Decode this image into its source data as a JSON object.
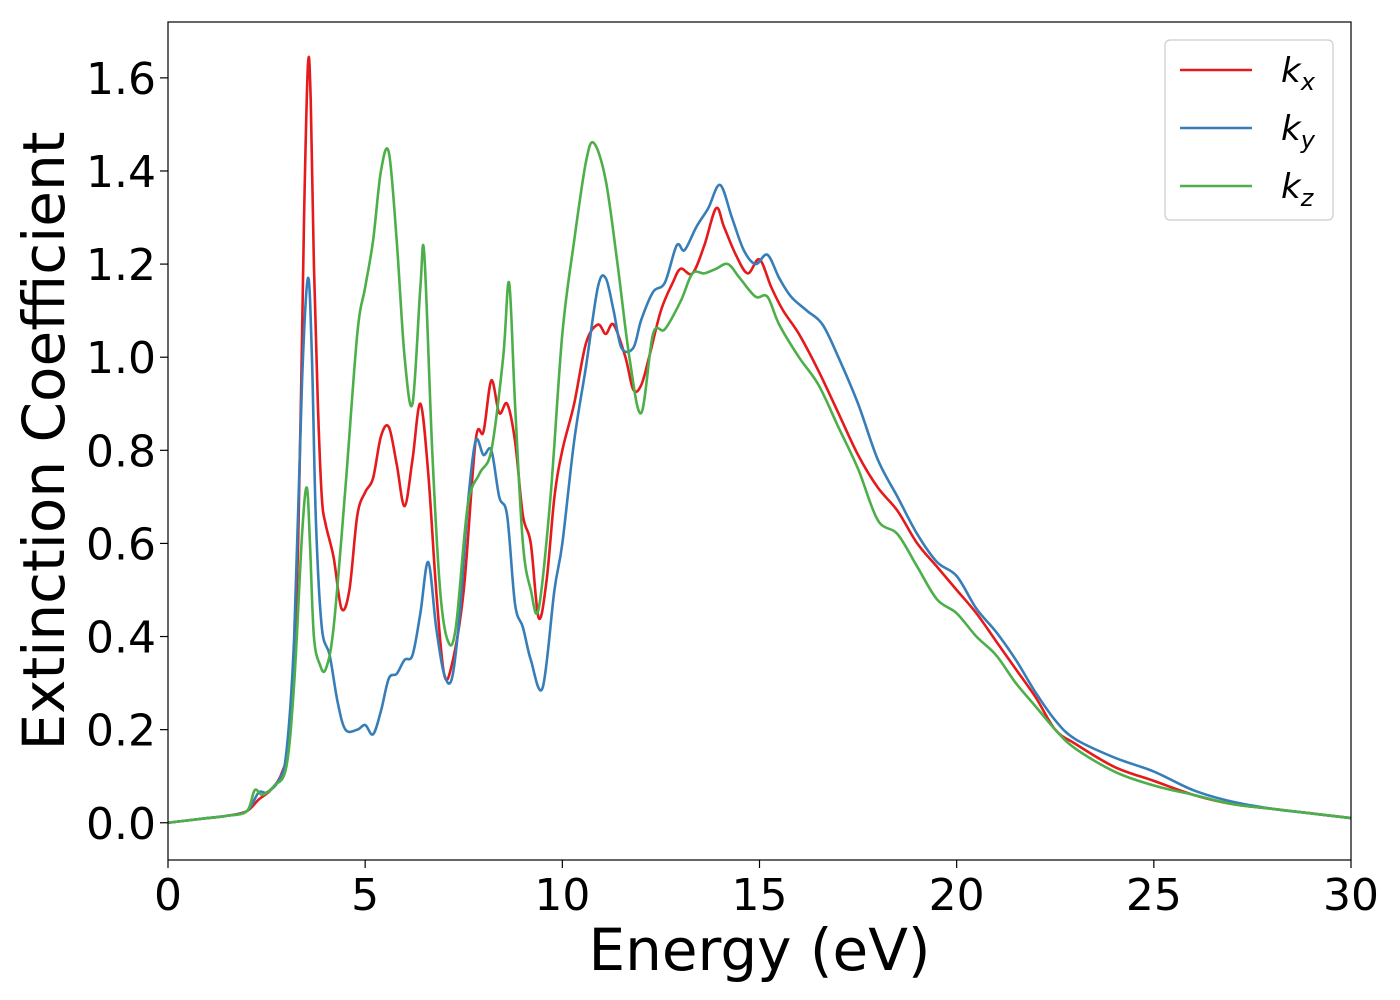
{
  "chart_data": {
    "type": "line",
    "title": "",
    "xlabel": "Energy (eV)",
    "ylabel": "Extinction Coefficient",
    "xlim": [
      0,
      30
    ],
    "ylim": [
      -0.08,
      1.72
    ],
    "xticks": [
      0,
      5,
      10,
      15,
      20,
      25,
      30
    ],
    "yticks": [
      0.0,
      0.2,
      0.4,
      0.6,
      0.8,
      1.0,
      1.2,
      1.4,
      1.6
    ],
    "grid": false,
    "legend_position": "top-right",
    "series": [
      {
        "name": "kx",
        "name_main": "k",
        "name_sub": "x",
        "color": "#e41a1c",
        "x": [
          0,
          1.0,
          1.5,
          2.0,
          2.3,
          2.6,
          2.9,
          3.1,
          3.3,
          3.45,
          3.55,
          3.62,
          3.7,
          3.8,
          3.9,
          4.0,
          4.2,
          4.4,
          4.6,
          4.8,
          5.0,
          5.2,
          5.4,
          5.6,
          5.8,
          6.0,
          6.2,
          6.4,
          6.6,
          6.8,
          7.0,
          7.2,
          7.5,
          7.8,
          8.0,
          8.2,
          8.4,
          8.6,
          8.8,
          9.0,
          9.2,
          9.4,
          9.6,
          9.8,
          10.0,
          10.3,
          10.6,
          10.9,
          11.1,
          11.3,
          11.6,
          11.8,
          12.0,
          12.2,
          12.5,
          12.8,
          13.0,
          13.3,
          13.6,
          13.9,
          14.1,
          14.4,
          14.7,
          15.0,
          15.3,
          15.6,
          16.0,
          16.5,
          17.0,
          17.5,
          18.0,
          18.5,
          19.0,
          19.5,
          20.0,
          20.5,
          21.0,
          21.5,
          22.0,
          22.5,
          23.0,
          24.0,
          25.0,
          26.0,
          27.0,
          28.0,
          29.0,
          30.0
        ],
        "y": [
          0.0,
          0.01,
          0.015,
          0.025,
          0.05,
          0.07,
          0.11,
          0.2,
          0.6,
          1.3,
          1.63,
          1.55,
          1.2,
          0.9,
          0.7,
          0.64,
          0.57,
          0.46,
          0.5,
          0.66,
          0.71,
          0.74,
          0.83,
          0.85,
          0.77,
          0.68,
          0.78,
          0.9,
          0.75,
          0.5,
          0.32,
          0.34,
          0.5,
          0.82,
          0.84,
          0.95,
          0.88,
          0.9,
          0.82,
          0.66,
          0.6,
          0.44,
          0.52,
          0.7,
          0.8,
          0.9,
          1.03,
          1.07,
          1.05,
          1.07,
          1.0,
          0.93,
          0.94,
          1.0,
          1.1,
          1.16,
          1.19,
          1.18,
          1.24,
          1.32,
          1.28,
          1.22,
          1.18,
          1.21,
          1.15,
          1.1,
          1.05,
          0.97,
          0.88,
          0.79,
          0.72,
          0.67,
          0.6,
          0.55,
          0.5,
          0.45,
          0.39,
          0.33,
          0.27,
          0.2,
          0.17,
          0.12,
          0.09,
          0.06,
          0.04,
          0.03,
          0.02,
          0.01
        ]
      },
      {
        "name": "ky",
        "name_main": "k",
        "name_sub": "y",
        "color": "#377eb8",
        "x": [
          0,
          1.0,
          1.5,
          2.0,
          2.3,
          2.5,
          2.8,
          3.0,
          3.2,
          3.4,
          3.55,
          3.65,
          3.75,
          3.9,
          4.1,
          4.3,
          4.5,
          4.8,
          5.0,
          5.2,
          5.4,
          5.6,
          5.8,
          6.0,
          6.2,
          6.4,
          6.6,
          6.8,
          7.0,
          7.2,
          7.4,
          7.6,
          7.8,
          8.0,
          8.2,
          8.4,
          8.6,
          8.8,
          9.0,
          9.2,
          9.5,
          9.8,
          10.0,
          10.3,
          10.6,
          10.9,
          11.1,
          11.3,
          11.5,
          11.8,
          12.0,
          12.3,
          12.6,
          12.9,
          13.1,
          13.4,
          13.7,
          14.0,
          14.3,
          14.6,
          14.9,
          15.2,
          15.5,
          15.8,
          16.2,
          16.6,
          17.0,
          17.5,
          18.0,
          18.5,
          19.0,
          19.5,
          20.0,
          20.5,
          21.0,
          21.5,
          22.0,
          22.5,
          23.0,
          24.0,
          25.0,
          26.0,
          27.0,
          28.0,
          29.0,
          30.0
        ],
        "y": [
          0.0,
          0.01,
          0.015,
          0.025,
          0.065,
          0.065,
          0.09,
          0.15,
          0.4,
          0.95,
          1.17,
          1.0,
          0.65,
          0.42,
          0.36,
          0.26,
          0.2,
          0.2,
          0.21,
          0.19,
          0.24,
          0.31,
          0.32,
          0.35,
          0.36,
          0.45,
          0.56,
          0.42,
          0.32,
          0.31,
          0.45,
          0.68,
          0.82,
          0.79,
          0.8,
          0.7,
          0.66,
          0.47,
          0.42,
          0.35,
          0.29,
          0.5,
          0.6,
          0.82,
          0.98,
          1.15,
          1.17,
          1.1,
          1.02,
          1.02,
          1.08,
          1.14,
          1.16,
          1.24,
          1.23,
          1.28,
          1.32,
          1.37,
          1.3,
          1.23,
          1.2,
          1.22,
          1.17,
          1.13,
          1.1,
          1.07,
          1.0,
          0.9,
          0.78,
          0.7,
          0.62,
          0.56,
          0.53,
          0.46,
          0.41,
          0.35,
          0.28,
          0.22,
          0.18,
          0.14,
          0.11,
          0.07,
          0.045,
          0.03,
          0.02,
          0.01
        ]
      },
      {
        "name": "kz",
        "name_main": "k",
        "name_sub": "z",
        "color": "#4daf4a",
        "x": [
          0,
          1.0,
          1.5,
          2.0,
          2.2,
          2.4,
          2.7,
          3.0,
          3.2,
          3.4,
          3.52,
          3.6,
          3.7,
          3.85,
          4.0,
          4.2,
          4.5,
          4.8,
          5.0,
          5.2,
          5.4,
          5.6,
          5.8,
          6.0,
          6.2,
          6.4,
          6.5,
          6.7,
          6.9,
          7.1,
          7.3,
          7.6,
          7.9,
          8.2,
          8.5,
          8.65,
          8.8,
          9.0,
          9.2,
          9.4,
          9.7,
          10.0,
          10.3,
          10.6,
          10.8,
          11.1,
          11.4,
          11.7,
          12.0,
          12.3,
          12.6,
          13.0,
          13.3,
          13.6,
          13.9,
          14.2,
          14.5,
          14.9,
          15.2,
          15.5,
          16.0,
          16.5,
          17.0,
          17.5,
          18.0,
          18.5,
          19.0,
          19.5,
          20.0,
          20.5,
          21.0,
          21.5,
          22.0,
          22.5,
          23.0,
          24.0,
          25.0,
          26.0,
          27.0,
          28.0,
          29.0,
          30.0
        ],
        "y": [
          0.0,
          0.01,
          0.015,
          0.025,
          0.07,
          0.06,
          0.08,
          0.12,
          0.3,
          0.62,
          0.72,
          0.6,
          0.4,
          0.34,
          0.33,
          0.42,
          0.72,
          1.05,
          1.15,
          1.25,
          1.4,
          1.44,
          1.25,
          1.0,
          0.9,
          1.15,
          1.22,
          0.8,
          0.5,
          0.39,
          0.42,
          0.68,
          0.75,
          0.8,
          1.0,
          1.16,
          0.9,
          0.6,
          0.5,
          0.46,
          0.7,
          1.05,
          1.25,
          1.42,
          1.46,
          1.38,
          1.2,
          1.0,
          0.88,
          1.05,
          1.06,
          1.12,
          1.18,
          1.18,
          1.19,
          1.2,
          1.17,
          1.13,
          1.13,
          1.07,
          1.0,
          0.94,
          0.85,
          0.76,
          0.65,
          0.62,
          0.55,
          0.48,
          0.45,
          0.4,
          0.36,
          0.3,
          0.25,
          0.2,
          0.16,
          0.11,
          0.08,
          0.06,
          0.04,
          0.03,
          0.02,
          0.01
        ]
      }
    ]
  }
}
